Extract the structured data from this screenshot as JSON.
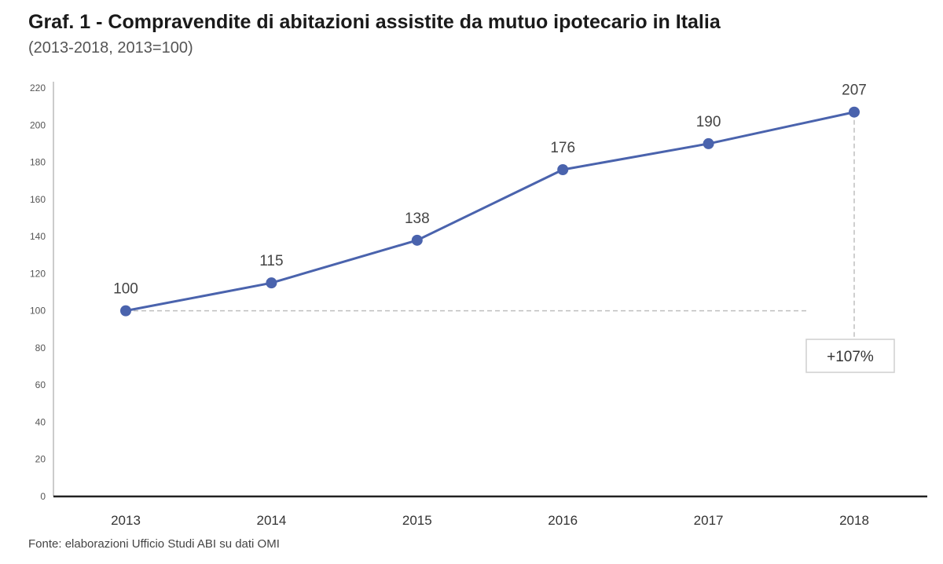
{
  "chart_data": {
    "type": "line",
    "title": "Graf. 1 - Compravendite di abitazioni assistite da mutuo ipotecario in Italia",
    "subtitle": "(2013-2018, 2013=100)",
    "xlabel": "",
    "ylabel": "",
    "ylim": [
      0,
      220
    ],
    "yticks": [
      0,
      20,
      40,
      60,
      80,
      100,
      120,
      140,
      160,
      180,
      200,
      220
    ],
    "categories": [
      "2013",
      "2014",
      "2015",
      "2016",
      "2017",
      "2018"
    ],
    "series": [
      {
        "values": [
          100,
          115,
          138,
          176,
          190,
          207
        ]
      }
    ],
    "data_labels": [
      "100",
      "115",
      "138",
      "176",
      "190",
      "207"
    ],
    "annotation": {
      "text": "+107%",
      "from_category": "2013",
      "to_category": "2018"
    },
    "grid": false,
    "legend": "none",
    "source": "Fonte: elaborazioni Ufficio Studi ABI su dati OMI",
    "colors": {
      "line": "#4a63ad",
      "marker": "#4a63ad",
      "axis": "#222222",
      "guide": "#bfbfbf"
    }
  }
}
